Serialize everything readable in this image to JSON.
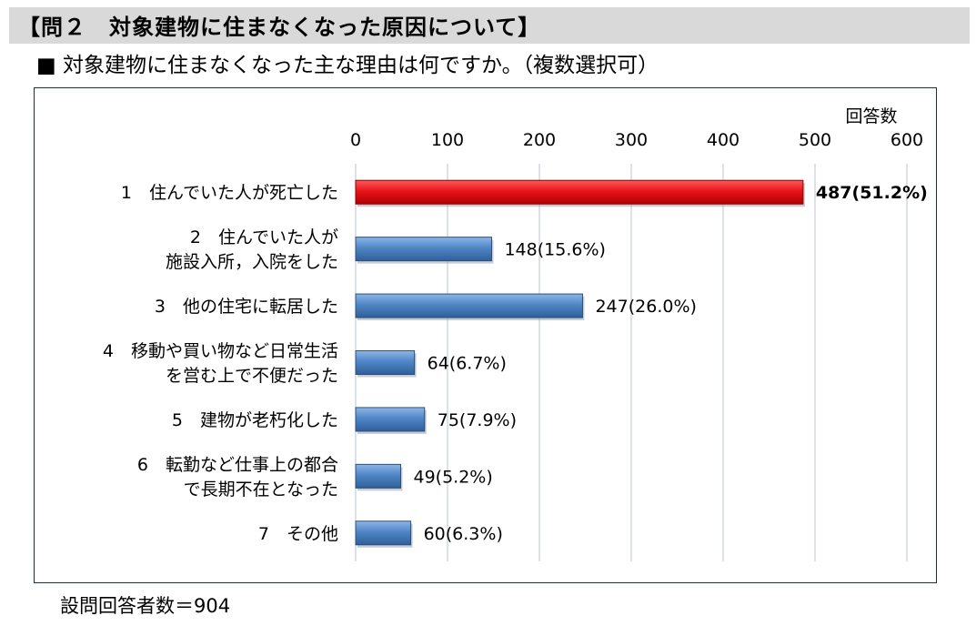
{
  "header": {
    "title": "【問２　対象建物に住まなくなった原因について】"
  },
  "question": {
    "text": "■ 対象建物に住まなくなった主な理由は何ですか。（複数選択可）"
  },
  "chart_data": {
    "type": "bar",
    "orientation": "horizontal",
    "xlabel": "回答数",
    "xlim": [
      0,
      600
    ],
    "xticks": [
      0,
      100,
      200,
      300,
      400,
      500,
      600
    ],
    "grid": true,
    "categories": [
      [
        "1　住んでいた人が死亡した"
      ],
      [
        "2　住んでいた人が",
        "施設入所，入院をした"
      ],
      [
        "3　他の住宅に転居した"
      ],
      [
        "4　移動や買い物など日常生活",
        "を営む上で不便だった"
      ],
      [
        "5　建物が老朽化した"
      ],
      [
        "6　転勤など仕事上の都合",
        "で長期不在となった"
      ],
      [
        "7　その他"
      ]
    ],
    "values": [
      487,
      148,
      247,
      64,
      75,
      49,
      60
    ],
    "value_labels": [
      "487(51.2%)",
      "148(15.6%)",
      "247(26.0%)",
      "64(6.7%)",
      "75(7.9%)",
      "49(5.2%)",
      "60(6.3%)"
    ],
    "highlight_index": 0,
    "colors": {
      "highlight": "#e8141b",
      "bar": "#4f86c6",
      "grid": "#b8c4cc"
    }
  },
  "footnote": {
    "text": "設問回答者数＝904"
  }
}
